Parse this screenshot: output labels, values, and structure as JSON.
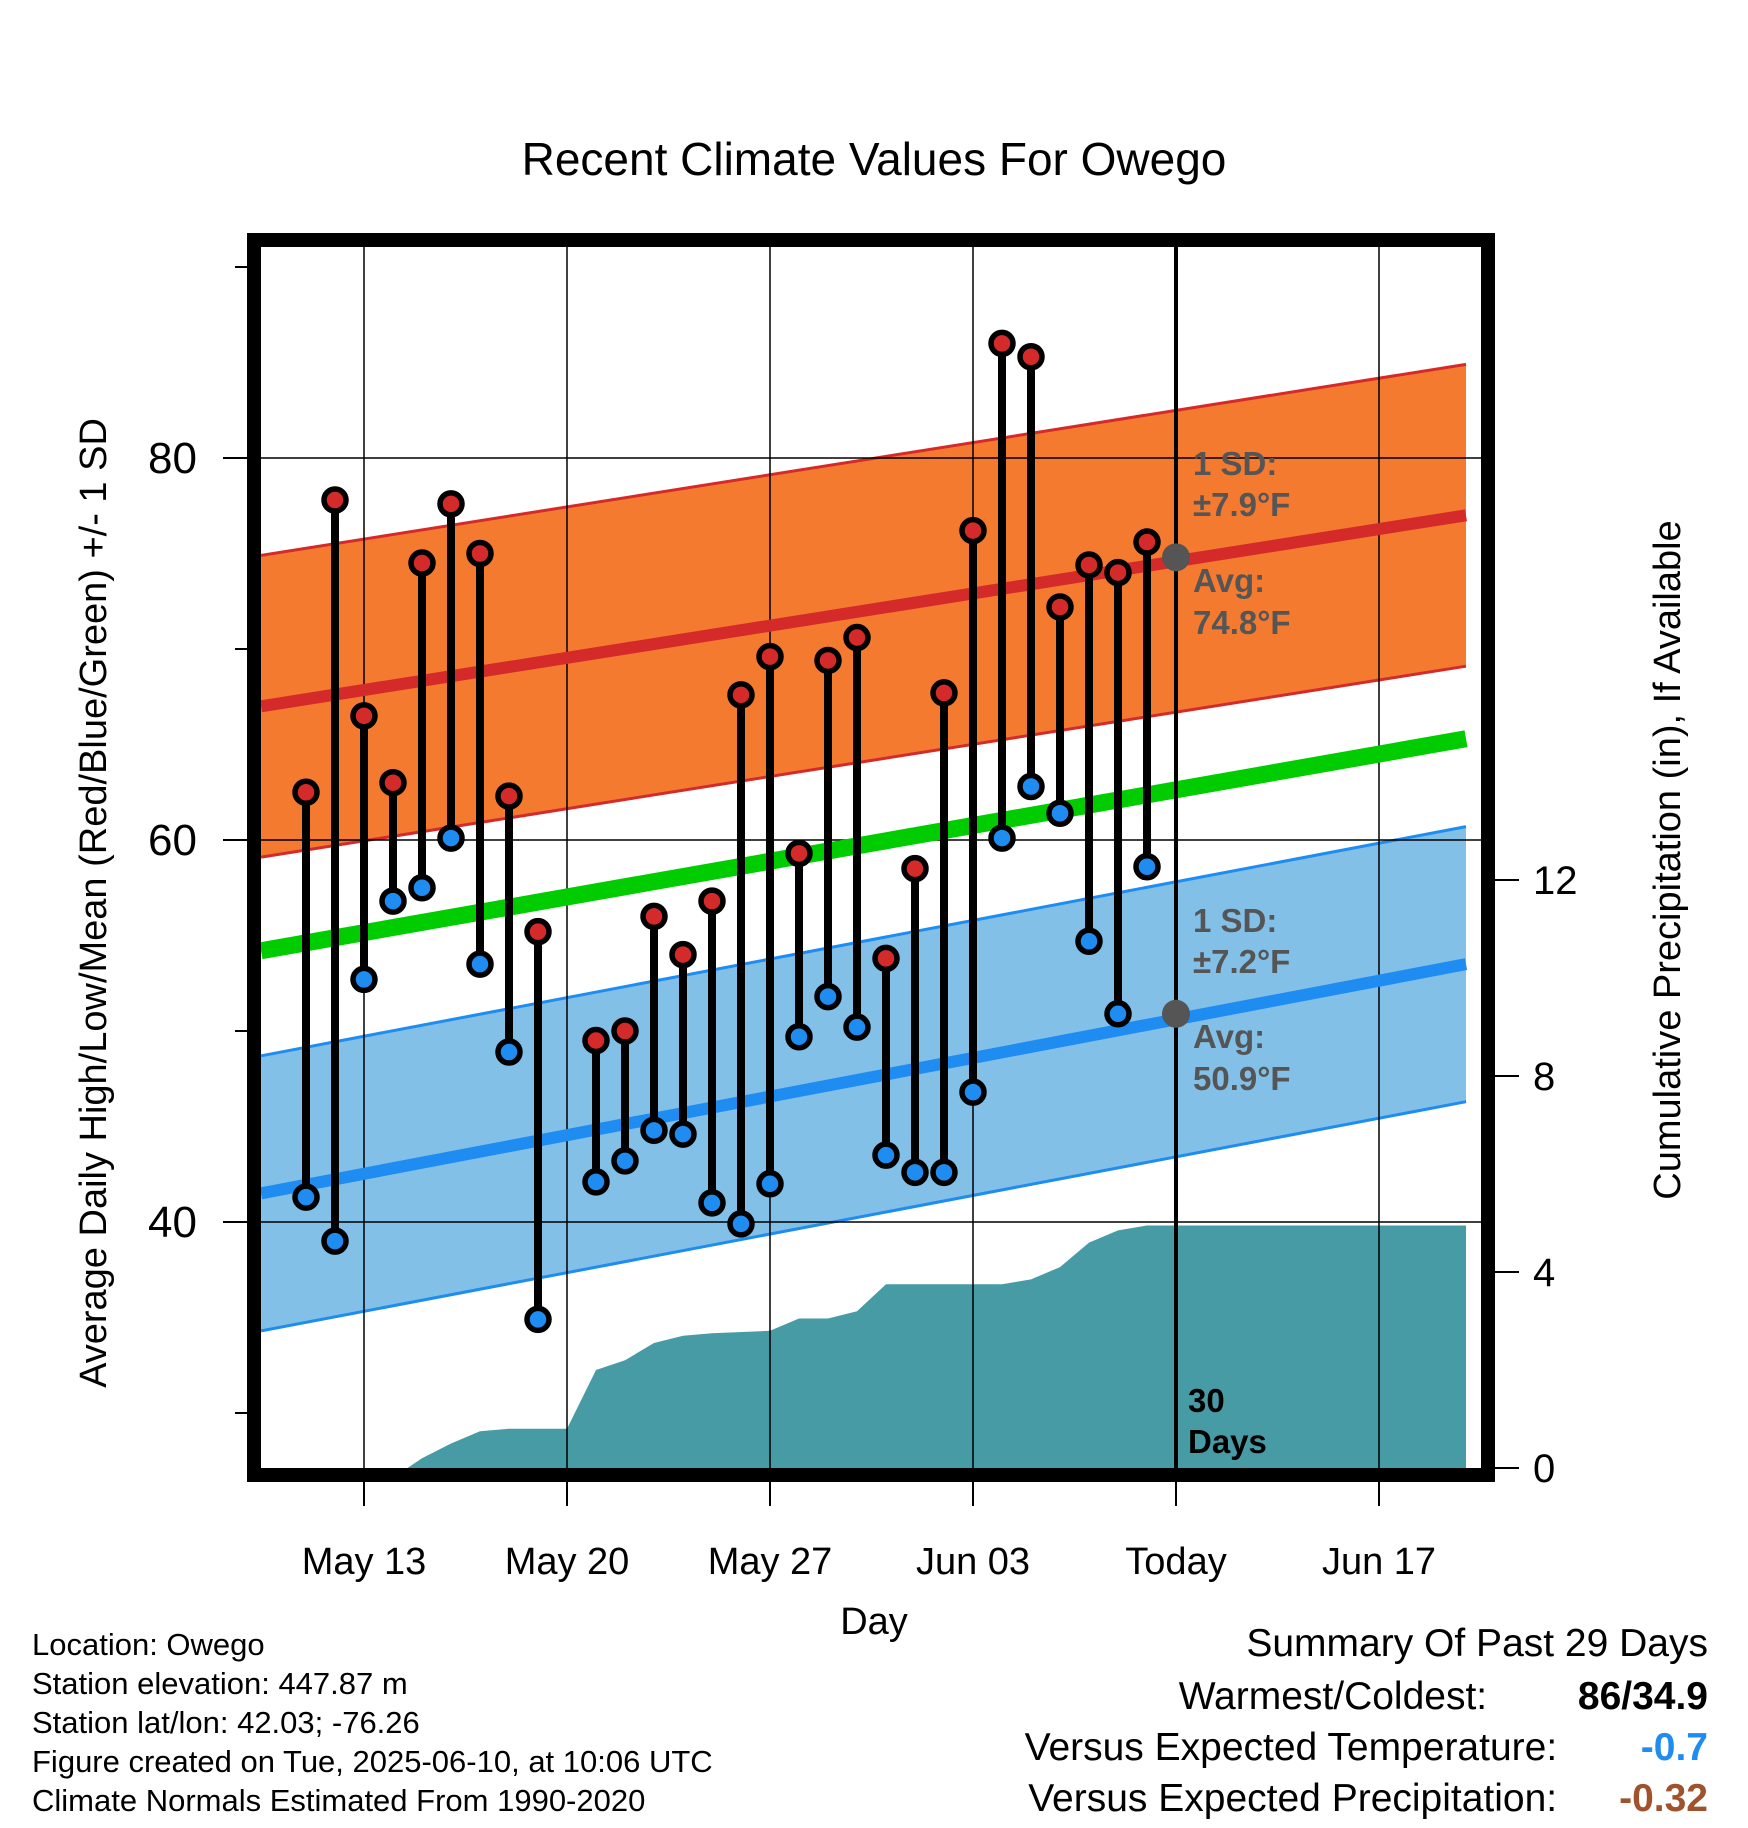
{
  "chart_data": {
    "type": "line",
    "title": "Recent Climate Values For Owego",
    "xlabel": "Day",
    "ylabel_left": "Average Daily High/Low/Mean (Red/Blue/Green) +/- 1 SD",
    "ylabel_right": "Cumulative Precipitation (in), If Available",
    "x_range_days": [
      0,
      41
    ],
    "ylim": [
      27.5,
      92.0
    ],
    "y_ticks": [
      40,
      60,
      80
    ],
    "y_minor_ticks": [
      30,
      50,
      70,
      90
    ],
    "y2lim": [
      0,
      12.0
    ],
    "y2_ticks": [
      0,
      4,
      8,
      12
    ],
    "x_ticks": [
      {
        "day": 3,
        "label": "May 13"
      },
      {
        "day": 10,
        "label": "May 20"
      },
      {
        "day": 17,
        "label": "May 27"
      },
      {
        "day": 24,
        "label": "Jun 03"
      },
      {
        "day": 31,
        "label": "Today"
      },
      {
        "day": 38,
        "label": "Jun 17"
      }
    ],
    "today_day": 31,
    "normal_high": {
      "start": 67.0,
      "end": 77.0
    },
    "normal_low": {
      "start": 41.5,
      "end": 53.5
    },
    "normal_mean": {
      "start": 54.2,
      "end": 65.3
    },
    "high_sd": 7.9,
    "low_sd": 7.2,
    "observed": [
      {
        "day": 1,
        "high": 62.5,
        "low": 41.3
      },
      {
        "day": 2,
        "high": 77.8,
        "low": 39.0
      },
      {
        "day": 3,
        "high": 66.5,
        "low": 52.7
      },
      {
        "day": 4,
        "high": 63.0,
        "low": 56.8
      },
      {
        "day": 5,
        "high": 74.5,
        "low": 57.5
      },
      {
        "day": 6,
        "high": 77.6,
        "low": 60.1
      },
      {
        "day": 7,
        "high": 75.0,
        "low": 53.5
      },
      {
        "day": 8,
        "high": 62.3,
        "low": 48.9
      },
      {
        "day": 9,
        "high": 55.2,
        "low": 34.9
      },
      {
        "day": 11,
        "high": 49.5,
        "low": 42.1
      },
      {
        "day": 12,
        "high": 50.0,
        "low": 43.2
      },
      {
        "day": 13,
        "high": 56.0,
        "low": 44.8
      },
      {
        "day": 14,
        "high": 54.0,
        "low": 44.6
      },
      {
        "day": 15,
        "high": 56.8,
        "low": 41.0
      },
      {
        "day": 16,
        "high": 67.6,
        "low": 39.9
      },
      {
        "day": 17,
        "high": 69.6,
        "low": 42.0
      },
      {
        "day": 18,
        "high": 59.3,
        "low": 49.7
      },
      {
        "day": 19,
        "high": 69.4,
        "low": 51.8
      },
      {
        "day": 20,
        "high": 70.6,
        "low": 50.2
      },
      {
        "day": 21,
        "high": 53.8,
        "low": 43.5
      },
      {
        "day": 22,
        "high": 58.5,
        "low": 42.6
      },
      {
        "day": 23,
        "high": 67.7,
        "low": 42.6
      },
      {
        "day": 24,
        "high": 76.2,
        "low": 46.8
      },
      {
        "day": 25,
        "high": 86.0,
        "low": 60.1
      },
      {
        "day": 26,
        "high": 85.3,
        "low": 62.8
      },
      {
        "day": 27,
        "high": 72.2,
        "low": 61.4
      },
      {
        "day": 28,
        "high": 74.4,
        "low": 54.7
      },
      {
        "day": 29,
        "high": 74.0,
        "low": 50.9
      },
      {
        "day": 30,
        "high": 75.6,
        "low": 58.6
      }
    ],
    "cumulative_precip": [
      {
        "day": 4.5,
        "value": 0.0
      },
      {
        "day": 5.0,
        "value": 0.2
      },
      {
        "day": 6.0,
        "value": 0.5
      },
      {
        "day": 7.0,
        "value": 0.75
      },
      {
        "day": 8.0,
        "value": 0.8
      },
      {
        "day": 10.0,
        "value": 0.8
      },
      {
        "day": 11.0,
        "value": 2.0
      },
      {
        "day": 12.0,
        "value": 2.2
      },
      {
        "day": 13.0,
        "value": 2.55
      },
      {
        "day": 14.0,
        "value": 2.7
      },
      {
        "day": 15.0,
        "value": 2.75
      },
      {
        "day": 17.0,
        "value": 2.8
      },
      {
        "day": 18.0,
        "value": 3.05
      },
      {
        "day": 19.0,
        "value": 3.05
      },
      {
        "day": 20.0,
        "value": 3.2
      },
      {
        "day": 21.0,
        "value": 3.75
      },
      {
        "day": 24.0,
        "value": 3.75
      },
      {
        "day": 25.0,
        "value": 3.75
      },
      {
        "day": 26.0,
        "value": 3.85
      },
      {
        "day": 27.0,
        "value": 4.1
      },
      {
        "day": 28.0,
        "value": 4.6
      },
      {
        "day": 29.0,
        "value": 4.85
      },
      {
        "day": 30.0,
        "value": 4.95
      },
      {
        "day": 31.0,
        "value": 4.95
      },
      {
        "day": 41.0,
        "value": 4.95
      }
    ],
    "annotations": {
      "high_sd_line1": "1 SD:",
      "high_sd_line2": "±7.9°F",
      "high_avg_line1": "Avg:",
      "high_avg_line2": "74.8°F",
      "low_sd_line1": "1 SD:",
      "low_sd_line2": "±7.2°F",
      "low_avg_line1": "Avg:",
      "low_avg_line2": "50.9°F",
      "days_line1": "30",
      "days_line2": "Days",
      "high_avg_value": 74.8,
      "low_avg_value": 50.9
    },
    "colors": {
      "high_band": "#f47a30",
      "high_line": "#d42a2a",
      "low_band": "#82c0e8",
      "low_line": "#1e8cf0",
      "mean_line": "#00cc00",
      "precip": "#479ba5",
      "high_dot": "#d42a2a",
      "low_dot": "#1e8cf0",
      "avg_dot": "#555555",
      "annotation_text": "#555555"
    }
  },
  "info": {
    "location": "Location: Owego",
    "elevation": "Station elevation: 447.87 m",
    "latlon": "Station lat/lon: 42.03; -76.26",
    "created": "Figure created on Tue, 2025-06-10, at 10:06 UTC",
    "normals": "Climate Normals Estimated From 1990-2020"
  },
  "summary": {
    "title": "Summary Of Past 29 Days",
    "warmest_label": "Warmest/Coldest:",
    "warmest_value": "86/34.9",
    "temp_label": "Versus Expected Temperature:",
    "temp_value": "-0.7",
    "temp_color": "#1e8cf0",
    "precip_label": "Versus Expected Precipitation:",
    "precip_value": "-0.32",
    "precip_color": "#a0522d"
  }
}
